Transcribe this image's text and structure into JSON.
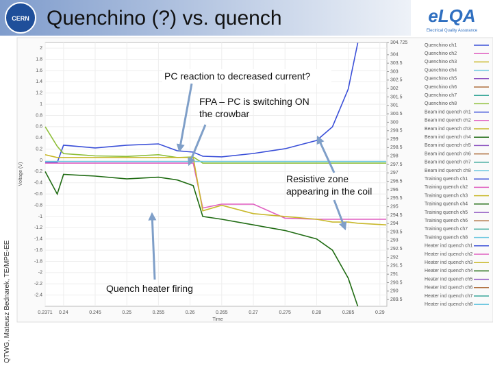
{
  "slide": {
    "title": "Quenchino (?) vs. quench",
    "side_label": "QTWG, Mateusz Bednarek, TE/MPE-EE",
    "logo_left": "CERN",
    "logo_right": "eLQA",
    "logo_right_sub": "Electrical Quality Assurance"
  },
  "chart_data": {
    "type": "line",
    "ylabel": "Voltage (V)",
    "xlabel": "Time",
    "x": [
      0.2371,
      0.239,
      0.24,
      0.245,
      0.25,
      0.255,
      0.258,
      0.2605,
      0.262,
      0.265,
      0.27,
      0.275,
      0.28,
      0.2825,
      0.285,
      0.2865,
      0.291
    ],
    "xlim": [
      0.2371,
      0.291103
    ],
    "xticks": [
      {
        "value": 0.2371,
        "label": "0.2371"
      },
      0.24,
      0.245,
      0.25,
      0.255,
      0.26,
      0.265,
      0.27,
      0.275,
      0.28,
      0.285,
      0.29
    ],
    "ylim": [
      -2.6,
      2.1
    ],
    "yticks": [
      2,
      1.8,
      1.6,
      1.4,
      1.2,
      1,
      0.8,
      0.6,
      0.4,
      0.2,
      0,
      -0.2,
      -0.4,
      -0.6,
      -0.8,
      -1,
      -1.2,
      -1.4,
      -1.6,
      -1.8,
      -2,
      -2.2,
      -2.4
    ],
    "y2lim": [
      289.1,
      304.725
    ],
    "y2ticks": [
      {
        "value": 304.725,
        "label": "304.725"
      },
      304,
      303.5,
      303,
      302.5,
      302,
      301.5,
      301,
      300.5,
      300,
      299.5,
      299,
      298.5,
      298,
      297.5,
      297,
      296.5,
      296,
      295.5,
      295,
      294.5,
      294,
      293.5,
      293,
      292.5,
      292,
      291.5,
      291,
      290.5,
      290,
      289.5
    ],
    "grid": true,
    "series": [
      {
        "color": "#3a4fd8",
        "axis": "y2",
        "values": [
          297.62,
          297.62,
          298.64,
          298.48,
          298.64,
          298.72,
          298.31,
          298.23,
          297.99,
          297.95,
          298.15,
          298.43,
          298.92,
          299.73,
          301.97,
          304.7,
          null
        ]
      },
      {
        "color": "#8fbf3a",
        "values": [
          0.6,
          0.25,
          0.12,
          0.08,
          0.07,
          0.1,
          0.05,
          0.06,
          -0.05,
          -0.05,
          -0.05,
          -0.05,
          -0.05,
          -0.05,
          -0.05,
          -0.05,
          -0.05
        ]
      },
      {
        "color": "#6cc7e0",
        "values": [
          -0.02,
          -0.02,
          -0.02,
          -0.02,
          -0.02,
          -0.02,
          -0.02,
          -0.02,
          -0.02,
          -0.02,
          -0.02,
          -0.02,
          -0.02,
          -0.02,
          -0.02,
          -0.02,
          -0.02
        ]
      },
      {
        "color": "#e05fc0",
        "values": [
          -0.05,
          -0.05,
          -0.05,
          -0.05,
          -0.05,
          -0.05,
          -0.05,
          -0.05,
          -0.85,
          -0.78,
          -0.78,
          -1.03,
          -1.05,
          -1.05,
          -1.05,
          -1.05,
          -1.05
        ]
      },
      {
        "color": "#c8b82a",
        "values": [
          0.1,
          0.05,
          0.05,
          0.05,
          0.05,
          0.05,
          0.05,
          0.05,
          -0.9,
          -0.8,
          -0.95,
          -1.0,
          -1.05,
          -1.1,
          -1.1,
          -1.12,
          -1.15
        ]
      },
      {
        "color": "#1f6b12",
        "values": [
          -0.2,
          -0.6,
          -0.25,
          -0.28,
          -0.33,
          -0.3,
          -0.35,
          -0.45,
          -1.0,
          -1.05,
          -1.15,
          -1.25,
          -1.4,
          -1.6,
          -2.1,
          -2.6,
          null
        ]
      }
    ],
    "legend": [
      {
        "name": "Quenchino ch1",
        "color": "#3a4fd8"
      },
      {
        "name": "Quenchino ch2",
        "color": "#e05fc0"
      },
      {
        "name": "Quenchino ch3",
        "color": "#c8b82a"
      },
      {
        "name": "Quenchino ch4",
        "color": "#6cc7e0"
      },
      {
        "name": "Quenchino ch5",
        "color": "#8a4fc0"
      },
      {
        "name": "Quenchino ch6",
        "color": "#b07040"
      },
      {
        "name": "Quenchino ch7",
        "color": "#3aa89a"
      },
      {
        "name": "Quenchino ch8",
        "color": "#8fbf3a"
      },
      {
        "name": "Beam ind quench ch1",
        "color": "#3a4fd8"
      },
      {
        "name": "Beam ind quench ch2",
        "color": "#e05fc0"
      },
      {
        "name": "Beam ind quench ch3",
        "color": "#c8b82a"
      },
      {
        "name": "Beam ind quench ch4",
        "color": "#1f6b12"
      },
      {
        "name": "Beam ind quench ch5",
        "color": "#8a4fc0"
      },
      {
        "name": "Beam ind quench ch6",
        "color": "#b07040"
      },
      {
        "name": "Beam ind quench ch7",
        "color": "#3aa89a"
      },
      {
        "name": "Beam ind quench ch8",
        "color": "#6cc7e0"
      },
      {
        "name": "Training quench ch1",
        "color": "#3a4fd8"
      },
      {
        "name": "Training quench ch2",
        "color": "#e05fc0"
      },
      {
        "name": "Training quench ch3",
        "color": "#c8b82a"
      },
      {
        "name": "Training quench ch4",
        "color": "#1f6b12"
      },
      {
        "name": "Training quench ch5",
        "color": "#8a4fc0"
      },
      {
        "name": "Training quench ch6",
        "color": "#b07040"
      },
      {
        "name": "Training quench ch7",
        "color": "#3aa89a"
      },
      {
        "name": "Training quench ch8",
        "color": "#6cc7e0"
      },
      {
        "name": "Heater ind quench ch1",
        "color": "#3a4fd8"
      },
      {
        "name": "Heater ind quench ch2",
        "color": "#e05fc0"
      },
      {
        "name": "Heater ind quench ch3",
        "color": "#c8b82a"
      },
      {
        "name": "Heater ind quench ch4",
        "color": "#1f6b12"
      },
      {
        "name": "Heater ind quench ch5",
        "color": "#8a4fc0"
      },
      {
        "name": "Heater ind quench ch6",
        "color": "#b07040"
      },
      {
        "name": "Heater ind quench ch7",
        "color": "#3aa89a"
      },
      {
        "name": "Heater ind quench ch8",
        "color": "#6cc7e0"
      }
    ],
    "annotations": [
      {
        "lines": [
          "PC reaction to decreased current?"
        ]
      },
      {
        "lines": [
          "FPA – PC is switching ON",
          "the crowbar"
        ]
      },
      {
        "lines": [
          "Resistive zone",
          "appearing in the coil"
        ]
      },
      {
        "lines": [
          "Quench heater firing"
        ]
      }
    ]
  }
}
